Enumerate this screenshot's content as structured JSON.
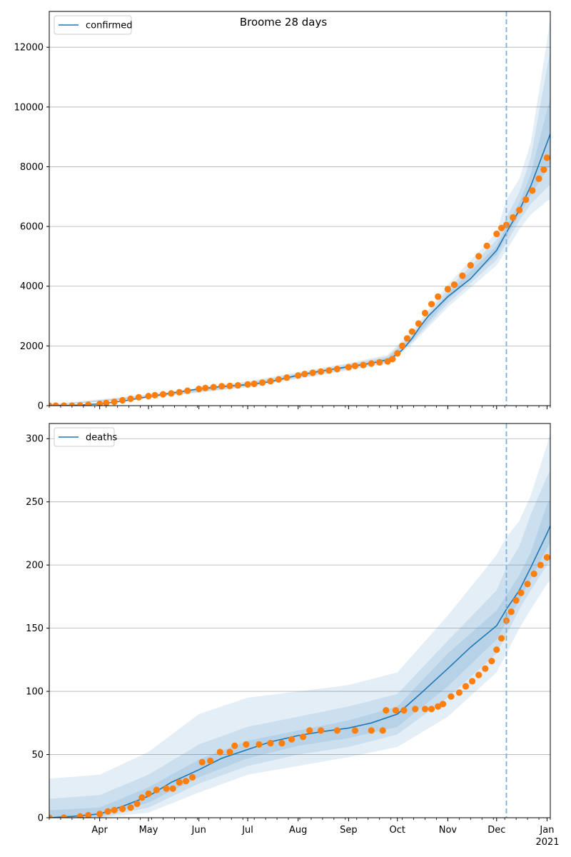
{
  "figure": {
    "title": "Broome 28 days",
    "vline_date": "2020-12-07"
  },
  "colors": {
    "model_line": "#1f77b4",
    "observed_points": "#ff7f0e",
    "band": "#1f77b4",
    "grid": "#b0b0b0",
    "vline": "#7fb0d8"
  },
  "x_axis": {
    "range": [
      "2020-03-01",
      "2021-01-03"
    ],
    "month_ticks": [
      {
        "date": "2020-04-01",
        "label": "Apr"
      },
      {
        "date": "2020-05-01",
        "label": "May"
      },
      {
        "date": "2020-06-01",
        "label": "Jun"
      },
      {
        "date": "2020-07-01",
        "label": "Jul"
      },
      {
        "date": "2020-08-01",
        "label": "Aug"
      },
      {
        "date": "2020-09-01",
        "label": "Sep"
      },
      {
        "date": "2020-10-01",
        "label": "Oct"
      },
      {
        "date": "2020-11-01",
        "label": "Nov"
      },
      {
        "date": "2020-12-01",
        "label": "Dec"
      },
      {
        "date": "2021-01-01",
        "label": "Jan"
      }
    ],
    "year_label": "2021"
  },
  "chart_data": [
    {
      "type": "line",
      "panel": "confirmed",
      "legend": [
        "confirmed"
      ],
      "legend_position": "top-left",
      "grid": "horizontal",
      "ylim": [
        0,
        13200
      ],
      "yticks": [
        0,
        2000,
        4000,
        6000,
        8000,
        10000,
        12000
      ],
      "model": {
        "name": "confirmed",
        "x": [
          "2020-03-01",
          "2020-03-15",
          "2020-04-01",
          "2020-04-15",
          "2020-05-01",
          "2020-05-15",
          "2020-06-01",
          "2020-06-15",
          "2020-07-01",
          "2020-07-15",
          "2020-08-01",
          "2020-08-15",
          "2020-09-01",
          "2020-09-15",
          "2020-09-25",
          "2020-10-01",
          "2020-10-05",
          "2020-10-10",
          "2020-10-15",
          "2020-10-20",
          "2020-11-01",
          "2020-11-15",
          "2020-12-01",
          "2020-12-07",
          "2020-12-15",
          "2020-12-22",
          "2021-01-01",
          "2021-01-03"
        ],
        "y": [
          0,
          10,
          60,
          150,
          300,
          420,
          560,
          640,
          700,
          800,
          1020,
          1160,
          1300,
          1420,
          1540,
          1720,
          1920,
          2250,
          2650,
          3000,
          3650,
          4250,
          5200,
          5800,
          6550,
          7350,
          8800,
          9100
        ]
      },
      "bands": [
        {
          "x": [
            "2020-03-01",
            "2020-05-01",
            "2020-07-01",
            "2020-09-01",
            "2020-09-25",
            "2020-10-10",
            "2020-11-01",
            "2020-12-01",
            "2020-12-07",
            "2020-12-15",
            "2020-12-22",
            "2021-01-01",
            "2021-01-03"
          ],
          "lower": [
            0,
            250,
            610,
            1180,
            1400,
            2050,
            3300,
            4700,
            5200,
            5900,
            6400,
            6850,
            6900
          ],
          "upper": [
            40,
            380,
            820,
            1430,
            1700,
            2500,
            4050,
            5800,
            6900,
            7600,
            8800,
            12200,
            13000
          ]
        },
        {
          "x": [
            "2020-03-01",
            "2020-05-01",
            "2020-07-01",
            "2020-09-01",
            "2020-09-25",
            "2020-10-10",
            "2020-11-01",
            "2020-12-01",
            "2020-12-07",
            "2020-12-15",
            "2020-12-22",
            "2021-01-01",
            "2021-01-03"
          ],
          "lower": [
            0,
            270,
            640,
            1220,
            1440,
            2120,
            3420,
            4880,
            5450,
            6200,
            6750,
            7300,
            7400
          ],
          "upper": [
            25,
            350,
            780,
            1390,
            1650,
            2400,
            3900,
            5550,
            6300,
            7150,
            8300,
            11300,
            11900
          ]
        },
        {
          "x": [
            "2020-03-01",
            "2020-05-01",
            "2020-07-01",
            "2020-09-01",
            "2020-09-25",
            "2020-10-10",
            "2020-11-01",
            "2020-12-01",
            "2020-12-07",
            "2020-12-15",
            "2020-12-22",
            "2021-01-01",
            "2021-01-03"
          ],
          "lower": [
            0,
            285,
            670,
            1260,
            1490,
            2180,
            3550,
            5050,
            5650,
            6400,
            7050,
            7900,
            8050
          ],
          "upper": [
            15,
            325,
            740,
            1340,
            1600,
            2320,
            3760,
            5350,
            6000,
            6800,
            7750,
            9900,
            10300
          ]
        }
      ],
      "observed": {
        "x": [
          "2020-03-01",
          "2020-03-05",
          "2020-03-10",
          "2020-03-15",
          "2020-03-20",
          "2020-03-25",
          "2020-04-01",
          "2020-04-05",
          "2020-04-10",
          "2020-04-15",
          "2020-04-20",
          "2020-04-25",
          "2020-05-01",
          "2020-05-05",
          "2020-05-10",
          "2020-05-15",
          "2020-05-20",
          "2020-05-25",
          "2020-06-01",
          "2020-06-05",
          "2020-06-10",
          "2020-06-15",
          "2020-06-20",
          "2020-06-25",
          "2020-07-01",
          "2020-07-05",
          "2020-07-10",
          "2020-07-15",
          "2020-07-20",
          "2020-07-25",
          "2020-08-01",
          "2020-08-05",
          "2020-08-10",
          "2020-08-15",
          "2020-08-20",
          "2020-08-25",
          "2020-09-01",
          "2020-09-05",
          "2020-09-10",
          "2020-09-15",
          "2020-09-20",
          "2020-09-25",
          "2020-09-28",
          "2020-10-01",
          "2020-10-04",
          "2020-10-07",
          "2020-10-10",
          "2020-10-14",
          "2020-10-18",
          "2020-10-22",
          "2020-10-26",
          "2020-11-01",
          "2020-11-05",
          "2020-11-10",
          "2020-11-15",
          "2020-11-20",
          "2020-11-25",
          "2020-12-01",
          "2020-12-04",
          "2020-12-07",
          "2020-12-11",
          "2020-12-15",
          "2020-12-19",
          "2020-12-23",
          "2020-12-27",
          "2020-12-30",
          "2021-01-01"
        ],
        "y": [
          0,
          0,
          0,
          0,
          10,
          30,
          60,
          90,
          130,
          180,
          230,
          280,
          320,
          350,
          380,
          410,
          450,
          500,
          560,
          590,
          620,
          650,
          660,
          680,
          710,
          730,
          770,
          820,
          880,
          940,
          1010,
          1060,
          1100,
          1140,
          1180,
          1230,
          1290,
          1330,
          1360,
          1410,
          1450,
          1480,
          1560,
          1750,
          2000,
          2250,
          2480,
          2750,
          3100,
          3400,
          3650,
          3900,
          4050,
          4350,
          4700,
          5000,
          5350,
          5750,
          5950,
          6050,
          6300,
          6550,
          6900,
          7200,
          7600,
          7900,
          8300
        ]
      }
    },
    {
      "type": "line",
      "panel": "deaths",
      "legend": [
        "deaths"
      ],
      "legend_position": "top-left",
      "grid": "horizontal",
      "ylim": [
        0,
        312
      ],
      "yticks": [
        0,
        50,
        100,
        150,
        200,
        250,
        300
      ],
      "model": {
        "name": "deaths",
        "x": [
          "2020-03-01",
          "2020-03-15",
          "2020-04-01",
          "2020-04-15",
          "2020-05-01",
          "2020-05-15",
          "2020-06-01",
          "2020-06-15",
          "2020-07-01",
          "2020-07-15",
          "2020-08-01",
          "2020-08-15",
          "2020-09-01",
          "2020-09-15",
          "2020-10-01",
          "2020-10-15",
          "2020-11-01",
          "2020-11-15",
          "2020-12-01",
          "2020-12-07",
          "2020-12-15",
          "2020-12-22",
          "2021-01-01",
          "2021-01-03"
        ],
        "y": [
          0,
          1,
          3,
          9,
          17,
          28,
          38,
          47,
          54,
          60,
          65,
          68,
          71,
          75,
          82,
          98,
          118,
          135,
          152,
          165,
          180,
          198,
          225,
          231
        ]
      },
      "bands": [
        {
          "x": [
            "2020-03-01",
            "2020-04-01",
            "2020-05-01",
            "2020-06-01",
            "2020-07-01",
            "2020-08-01",
            "2020-09-01",
            "2020-10-01",
            "2020-11-01",
            "2020-12-01",
            "2020-12-07",
            "2020-12-15",
            "2020-12-22",
            "2021-01-01",
            "2021-01-03"
          ],
          "lower": [
            0,
            0,
            4,
            20,
            34,
            41,
            48,
            56,
            80,
            115,
            130,
            150,
            165,
            185,
            188
          ],
          "upper": [
            31,
            34,
            52,
            82,
            95,
            100,
            105,
            115,
            160,
            208,
            222,
            235,
            255,
            295,
            305
          ]
        },
        {
          "x": [
            "2020-03-01",
            "2020-04-01",
            "2020-05-01",
            "2020-06-01",
            "2020-07-01",
            "2020-08-01",
            "2020-09-01",
            "2020-10-01",
            "2020-11-01",
            "2020-12-01",
            "2020-12-07",
            "2020-12-15",
            "2020-12-22",
            "2021-01-01",
            "2021-01-03"
          ],
          "lower": [
            0,
            0,
            8,
            27,
            41,
            50,
            56,
            66,
            95,
            130,
            145,
            165,
            180,
            200,
            203
          ],
          "upper": [
            15,
            18,
            34,
            58,
            72,
            80,
            88,
            98,
            140,
            180,
            198,
            215,
            240,
            270,
            275
          ]
        },
        {
          "x": [
            "2020-03-01",
            "2020-04-01",
            "2020-05-01",
            "2020-06-01",
            "2020-07-01",
            "2020-08-01",
            "2020-09-01",
            "2020-10-01",
            "2020-11-01",
            "2020-12-01",
            "2020-12-07",
            "2020-12-15",
            "2020-12-22",
            "2021-01-01",
            "2021-01-03"
          ],
          "lower": [
            0,
            1,
            12,
            32,
            47,
            57,
            63,
            72,
            104,
            141,
            155,
            172,
            189,
            213,
            218
          ],
          "upper": [
            6,
            8,
            24,
            46,
            61,
            69,
            77,
            88,
            130,
            164,
            176,
            192,
            210,
            248,
            252
          ]
        }
      ],
      "observed": {
        "x": [
          "2020-03-01",
          "2020-03-10",
          "2020-03-20",
          "2020-03-25",
          "2020-04-01",
          "2020-04-06",
          "2020-04-10",
          "2020-04-15",
          "2020-04-20",
          "2020-04-24",
          "2020-04-27",
          "2020-05-01",
          "2020-05-06",
          "2020-05-12",
          "2020-05-16",
          "2020-05-20",
          "2020-05-24",
          "2020-05-28",
          "2020-06-03",
          "2020-06-08",
          "2020-06-14",
          "2020-06-20",
          "2020-06-23",
          "2020-06-30",
          "2020-07-08",
          "2020-07-15",
          "2020-07-22",
          "2020-07-28",
          "2020-08-04",
          "2020-08-08",
          "2020-08-15",
          "2020-08-25",
          "2020-09-05",
          "2020-09-15",
          "2020-09-22",
          "2020-09-24",
          "2020-09-30",
          "2020-10-05",
          "2020-10-12",
          "2020-10-18",
          "2020-10-22",
          "2020-10-26",
          "2020-10-29",
          "2020-11-03",
          "2020-11-08",
          "2020-11-12",
          "2020-11-16",
          "2020-11-20",
          "2020-11-24",
          "2020-11-28",
          "2020-12-01",
          "2020-12-04",
          "2020-12-07",
          "2020-12-10",
          "2020-12-13",
          "2020-12-16",
          "2020-12-20",
          "2020-12-24",
          "2020-12-28",
          "2021-01-01"
        ],
        "y": [
          0,
          0,
          1,
          2,
          3,
          5,
          6,
          7,
          8,
          11,
          16,
          19,
          22,
          23,
          23,
          28,
          29,
          32,
          44,
          45,
          52,
          52,
          57,
          58,
          58,
          59,
          59,
          62,
          64,
          69,
          69,
          69,
          69,
          69,
          69,
          85,
          85,
          85,
          86,
          86,
          86,
          88,
          90,
          96,
          99,
          104,
          108,
          113,
          118,
          124,
          133,
          142,
          156,
          163,
          172,
          178,
          185,
          193,
          200,
          206
        ]
      }
    }
  ]
}
